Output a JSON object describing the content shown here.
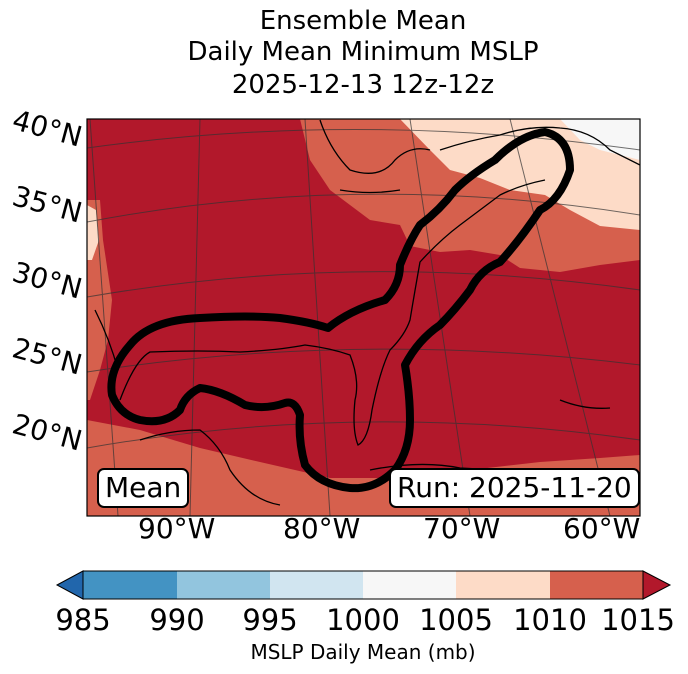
{
  "title": {
    "line1": "Ensemble Mean",
    "line2": "Daily Mean Minimum MSLP",
    "line3": "2025-12-13 12z-12z"
  },
  "map": {
    "lat_labels": [
      "40°N",
      "35°N",
      "30°N",
      "25°N",
      "20°N"
    ],
    "lon_labels": [
      "90°W",
      "80°W",
      "70°W",
      "60°W"
    ],
    "mean_badge": "Mean",
    "run_badge": "Run: 2025-11-20"
  },
  "colorbar": {
    "ticks": [
      "985",
      "990",
      "995",
      "1000",
      "1005",
      "1010",
      "1015"
    ],
    "label": "MSLP Daily Mean (mb)",
    "colors": [
      "#2166ac",
      "#4393c3",
      "#92c5de",
      "#d1e5f0",
      "#f7f7f7",
      "#fddbc7",
      "#d6604d",
      "#b2182b"
    ]
  }
}
